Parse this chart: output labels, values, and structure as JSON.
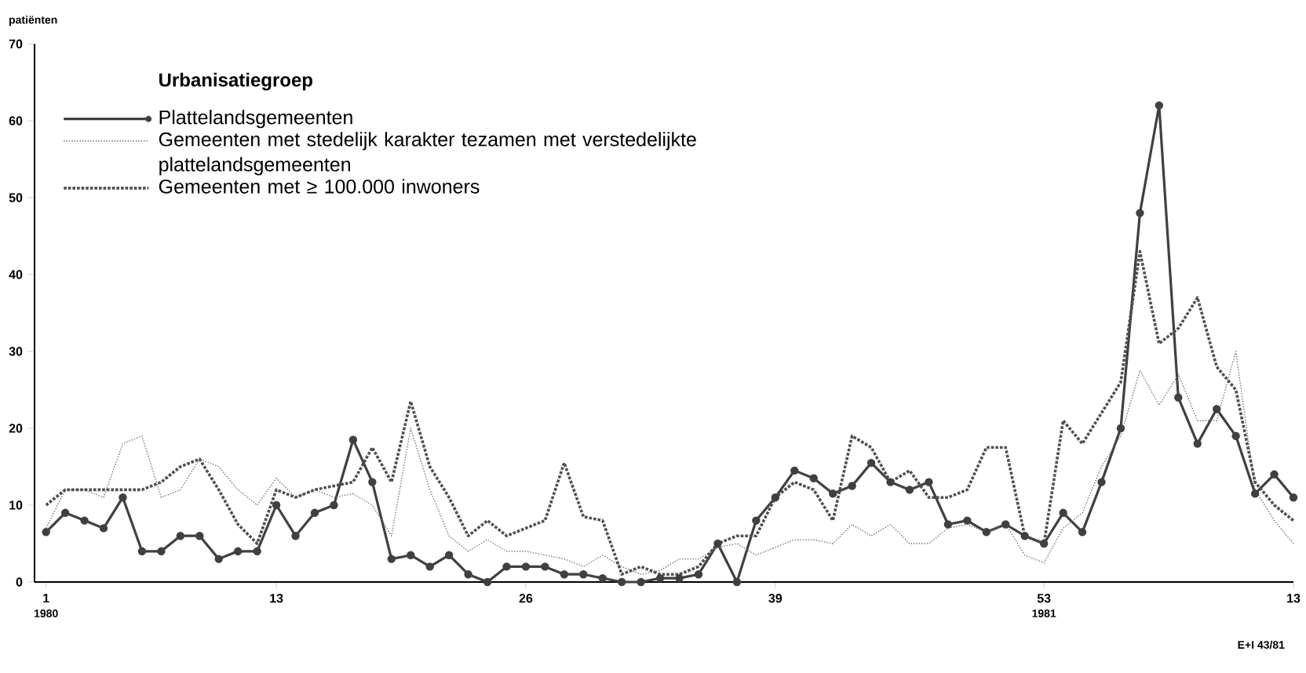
{
  "chart_data": {
    "type": "line",
    "ylabel": "patiënten",
    "legend_title": "Urbanisatiegroep",
    "legend": "top left",
    "grid": false,
    "categories": [
      "1",
      null,
      null,
      null,
      null,
      null,
      null,
      null,
      null,
      null,
      null,
      null,
      "13",
      null,
      null,
      null,
      null,
      null,
      null,
      null,
      null,
      null,
      null,
      null,
      null,
      "26",
      null,
      null,
      null,
      null,
      null,
      null,
      null,
      null,
      null,
      null,
      null,
      null,
      "39",
      null,
      null,
      null,
      null,
      null,
      null,
      null,
      null,
      null,
      null,
      null,
      null,
      null,
      "53",
      null,
      null,
      null,
      null,
      null,
      null,
      null,
      null,
      null,
      null,
      null,
      null,
      "13"
    ],
    "ylim": [
      0,
      70
    ],
    "yticks": [
      0,
      10,
      20,
      30,
      40,
      50,
      60,
      70
    ],
    "series": [
      {
        "name": "Plattelandsgemeenten",
        "color": "#404040",
        "line_style": "solid",
        "marker": "circle",
        "values": [
          6.5,
          9,
          8,
          7,
          11,
          4,
          4,
          6,
          6,
          3,
          4,
          4,
          10,
          6,
          9,
          10,
          18.5,
          13,
          3,
          3.5,
          2,
          3.5,
          1,
          0,
          2,
          2,
          2,
          1,
          1,
          0.5,
          0,
          0,
          0.5,
          0.5,
          1,
          5,
          0,
          8,
          11,
          14.5,
          13.5,
          11.5,
          12.5,
          15.5,
          13,
          12,
          13,
          7.5,
          8,
          6.5,
          7.5,
          6,
          5,
          9,
          6.5,
          13,
          20,
          48,
          62,
          24,
          18,
          22.5,
          19,
          11.5,
          14,
          11
        ]
      },
      {
        "name": "Gemeenten met stedelijk karakter tezamen met verstedelijkte plattelandsgemeenten",
        "color": "#707070",
        "line_style": "dotted",
        "marker": "none",
        "values": [
          7,
          12,
          12,
          11,
          18,
          19,
          11,
          12,
          16,
          15,
          12,
          10,
          13.5,
          11,
          12,
          11,
          11.5,
          10,
          6,
          20,
          12,
          6,
          4,
          5.5,
          4,
          4,
          3.5,
          3,
          2,
          3.5,
          2,
          1,
          1.5,
          3,
          3,
          4.5,
          5,
          3.5,
          4.5,
          5.5,
          5.5,
          5,
          7.5,
          6,
          7.5,
          5,
          5,
          7,
          7.5,
          6.5,
          7.5,
          3.5,
          2.5,
          7,
          9,
          15,
          19,
          27.5,
          23,
          27,
          21,
          21,
          30,
          12,
          8,
          5
        ]
      },
      {
        "name": "Gemeenten met ≥ 100.000 inwoners",
        "color": "#505050",
        "line_style": "dotted",
        "marker": "none",
        "values": [
          10,
          12,
          12,
          12,
          12,
          12,
          13,
          15,
          16,
          12,
          7.5,
          5,
          12,
          11,
          12,
          12.5,
          13,
          17.5,
          13,
          23.5,
          15,
          11,
          6,
          8,
          6,
          7,
          8,
          15.5,
          8.5,
          8,
          1,
          2,
          1,
          1,
          2,
          5,
          6,
          6,
          11,
          13,
          12,
          8,
          19,
          17.5,
          13,
          14.5,
          11,
          11,
          12,
          17.5,
          17.5,
          6,
          5,
          21,
          18,
          22,
          26,
          43,
          31,
          33,
          37,
          28,
          25,
          13,
          10,
          8
        ]
      }
    ],
    "annotations": [
      "1980",
      "1981",
      "E+I 43/81"
    ]
  }
}
